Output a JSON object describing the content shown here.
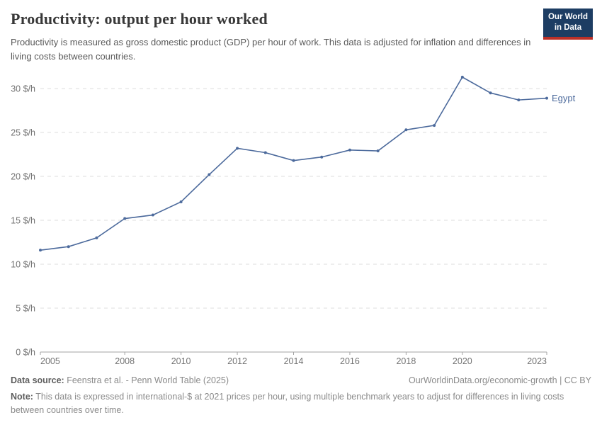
{
  "header": {
    "title": "Productivity: output per hour worked",
    "subtitle": "Productivity is measured as gross domestic product (GDP) per hour of work. This data is adjusted for inflation and differences in living costs between countries.",
    "logo": {
      "line1": "Our World",
      "line2": "in Data"
    }
  },
  "chart_data": {
    "type": "line",
    "title": "Productivity: output per hour worked",
    "xlim": [
      2005,
      2023
    ],
    "ylim": [
      0,
      32
    ],
    "grid": "horizontal-dashed",
    "legend_position": "end-of-line-label",
    "line_color": "#4c6a9c",
    "y_axis": {
      "tick_suffix": " $/h",
      "ticks": [
        {
          "value": 0,
          "label": "0 $/h"
        },
        {
          "value": 5,
          "label": "5 $/h"
        },
        {
          "value": 10,
          "label": "10 $/h"
        },
        {
          "value": 15,
          "label": "15 $/h"
        },
        {
          "value": 20,
          "label": "20 $/h"
        },
        {
          "value": 25,
          "label": "25 $/h"
        },
        {
          "value": 30,
          "label": "30 $/h"
        }
      ]
    },
    "x_axis": {
      "ticks": [
        {
          "year": 2005,
          "label": "2005"
        },
        {
          "year": 2008,
          "label": "2008"
        },
        {
          "year": 2010,
          "label": "2010"
        },
        {
          "year": 2012,
          "label": "2012"
        },
        {
          "year": 2014,
          "label": "2014"
        },
        {
          "year": 2016,
          "label": "2016"
        },
        {
          "year": 2018,
          "label": "2018"
        },
        {
          "year": 2020,
          "label": "2020"
        },
        {
          "year": 2023,
          "label": "2023"
        }
      ]
    },
    "series": [
      {
        "name": "Egypt",
        "color": "#4c6a9c",
        "x": [
          2005,
          2006,
          2007,
          2008,
          2009,
          2010,
          2011,
          2012,
          2013,
          2014,
          2015,
          2016,
          2017,
          2018,
          2019,
          2020,
          2021,
          2022,
          2023
        ],
        "values": [
          11.6,
          12.0,
          13.0,
          15.2,
          15.6,
          17.1,
          20.2,
          23.2,
          22.7,
          21.8,
          22.2,
          23.0,
          22.9,
          25.3,
          25.8,
          31.3,
          29.5,
          28.7,
          28.9
        ]
      }
    ]
  },
  "footer": {
    "source_label": "Data source:",
    "source_text": "Feenstra et al. - Penn World Table (2025)",
    "link": "OurWorldinData.org/economic-growth | CC BY",
    "note_label": "Note:",
    "note_text": "This data is expressed in international-$ at 2021 prices per hour, using multiple benchmark years to adjust for differences in living costs between countries over time."
  }
}
